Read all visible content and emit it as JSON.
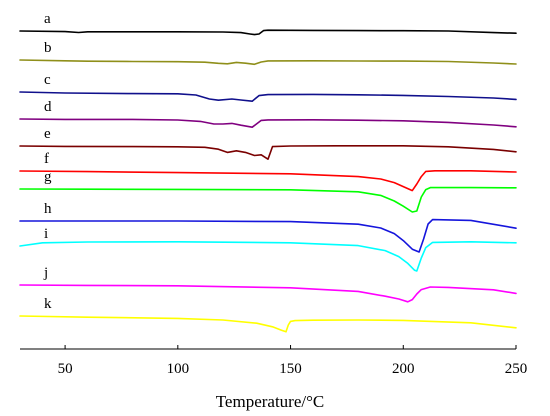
{
  "chart_data": {
    "type": "line",
    "title": "",
    "xlabel": "Temperature/°C",
    "ylabel": "",
    "xlim": [
      30,
      250
    ],
    "xticks": [
      50,
      100,
      150,
      200,
      250
    ],
    "xtick_labels": [
      "50",
      "100",
      "150",
      "200",
      "250"
    ],
    "y_axis_shown": false,
    "grid": false,
    "legend": "none",
    "series": [
      {
        "name": "a",
        "color": "#000000",
        "baseline": 0,
        "x": [
          30,
          50,
          56,
          60,
          80,
          100,
          120,
          128,
          132,
          134,
          136,
          138,
          140,
          160,
          180,
          200,
          220,
          240,
          250
        ],
        "y": [
          0,
          -0.6,
          -1.5,
          -0.8,
          -0.8,
          -0.8,
          -1.0,
          -1.6,
          -3.0,
          -3.6,
          -3.0,
          0.4,
          0.8,
          0.6,
          0.4,
          0.3,
          0.0,
          -1.6,
          -2.2
        ]
      },
      {
        "name": "b",
        "color": "#8f8f1a",
        "baseline": 0,
        "x": [
          30,
          50,
          60,
          80,
          100,
          112,
          118,
          122,
          126,
          130,
          134,
          137,
          140,
          160,
          180,
          200,
          220,
          240,
          250
        ],
        "y": [
          0,
          -0.8,
          -1.2,
          -1.5,
          -1.7,
          -2.2,
          -3.3,
          -3.8,
          -2.4,
          -3.2,
          -4.3,
          -2.0,
          -0.9,
          -0.8,
          -1.0,
          -1.1,
          -1.5,
          -3.0,
          -4.0
        ]
      },
      {
        "name": "c",
        "color": "#10108c",
        "baseline": 0,
        "x": [
          30,
          50,
          80,
          100,
          108,
          114,
          118,
          124,
          128,
          133,
          136,
          140,
          160,
          180,
          200,
          220,
          240,
          250
        ],
        "y": [
          0,
          -1.0,
          -1.6,
          -1.8,
          -3.0,
          -7.0,
          -8.2,
          -7.0,
          -8.0,
          -9.2,
          -3.6,
          -2.6,
          -2.4,
          -2.8,
          -3.4,
          -4.5,
          -6.0,
          -7.4
        ]
      },
      {
        "name": "d",
        "color": "#800080",
        "baseline": 0,
        "x": [
          30,
          50,
          80,
          100,
          110,
          116,
          120,
          124,
          128,
          133,
          137,
          140,
          160,
          180,
          200,
          220,
          240,
          250
        ],
        "y": [
          0,
          -0.4,
          -0.4,
          -1.0,
          -2.4,
          -5.0,
          -5.0,
          -4.4,
          -6.2,
          -8.2,
          -1.4,
          -0.9,
          -0.8,
          -1.2,
          -1.8,
          -3.4,
          -6.0,
          -7.8
        ]
      },
      {
        "name": "e",
        "color": "#7a0000",
        "baseline": 0,
        "x": [
          30,
          50,
          80,
          100,
          112,
          118,
          122,
          126,
          130,
          134,
          137,
          140,
          142,
          150,
          170,
          200,
          220,
          240,
          250
        ],
        "y": [
          0,
          -0.4,
          -0.6,
          -0.8,
          -1.3,
          -3.2,
          -6.4,
          -4.8,
          -6.4,
          -9.5,
          -8.8,
          -13.2,
          -0.6,
          0.0,
          0.2,
          0.2,
          -0.8,
          -3.4,
          -5.8
        ]
      },
      {
        "name": "f",
        "color": "#ff0000",
        "baseline": 0,
        "x": [
          30,
          60,
          100,
          150,
          180,
          190,
          196,
          200,
          204,
          206,
          208,
          210,
          214,
          230,
          250
        ],
        "y": [
          0,
          -0.6,
          -1.6,
          -2.8,
          -5.6,
          -8.0,
          -11.6,
          -15.6,
          -19.6,
          -13.0,
          -5.6,
          -0.4,
          0.2,
          0.2,
          -1.0
        ]
      },
      {
        "name": "g",
        "color": "#00ff00",
        "baseline": 0,
        "x": [
          30,
          60,
          100,
          150,
          180,
          190,
          196,
          200,
          204,
          206,
          208,
          210,
          212,
          230,
          250
        ],
        "y": [
          0,
          -0.2,
          -0.4,
          -0.8,
          -2.8,
          -6.4,
          -12.0,
          -17.2,
          -23.0,
          -22.0,
          -8.0,
          -0.6,
          1.4,
          1.4,
          1.2
        ]
      },
      {
        "name": "h",
        "color": "#1515dc",
        "baseline": 0,
        "x": [
          30,
          60,
          100,
          150,
          180,
          190,
          196,
          200,
          204,
          207,
          209,
          211,
          213,
          230,
          250
        ],
        "y": [
          0,
          0.0,
          0.0,
          -0.6,
          -3.2,
          -7.0,
          -12.6,
          -19.6,
          -28.2,
          -31.0,
          -18.0,
          -3.0,
          1.4,
          0.6,
          -7.2
        ]
      },
      {
        "name": "i",
        "color": "#00ffff",
        "baseline": 0,
        "x": [
          30,
          40,
          60,
          100,
          150,
          180,
          192,
          198,
          202,
          205,
          206,
          208,
          210,
          213,
          230,
          250
        ],
        "y": [
          0,
          3.2,
          4.0,
          4.2,
          3.2,
          0.4,
          -4.6,
          -10.6,
          -17.4,
          -24.2,
          -25.0,
          -12.0,
          -1.6,
          3.6,
          4.2,
          3.2
        ]
      },
      {
        "name": "j",
        "color": "#ff00ff",
        "baseline": 0,
        "x": [
          30,
          60,
          100,
          150,
          180,
          192,
          198,
          202,
          204,
          206,
          208,
          212,
          220,
          240,
          250
        ],
        "y": [
          0,
          -0.4,
          -0.8,
          -2.8,
          -6.4,
          -11.2,
          -14.0,
          -16.8,
          -14.6,
          -9.0,
          -4.6,
          -2.0,
          -2.4,
          -4.8,
          -8.4
        ]
      },
      {
        "name": "k",
        "color": "#ffff00",
        "baseline": 0,
        "x": [
          30,
          60,
          100,
          120,
          135,
          142,
          146,
          148,
          149,
          150,
          152,
          160,
          180,
          200,
          230,
          250
        ],
        "y": [
          0,
          -1.2,
          -2.4,
          -4.0,
          -7.2,
          -10.8,
          -14.2,
          -15.8,
          -9.0,
          -5.4,
          -4.6,
          -4.2,
          -4.0,
          -4.4,
          -6.8,
          -11.8
        ]
      }
    ]
  }
}
